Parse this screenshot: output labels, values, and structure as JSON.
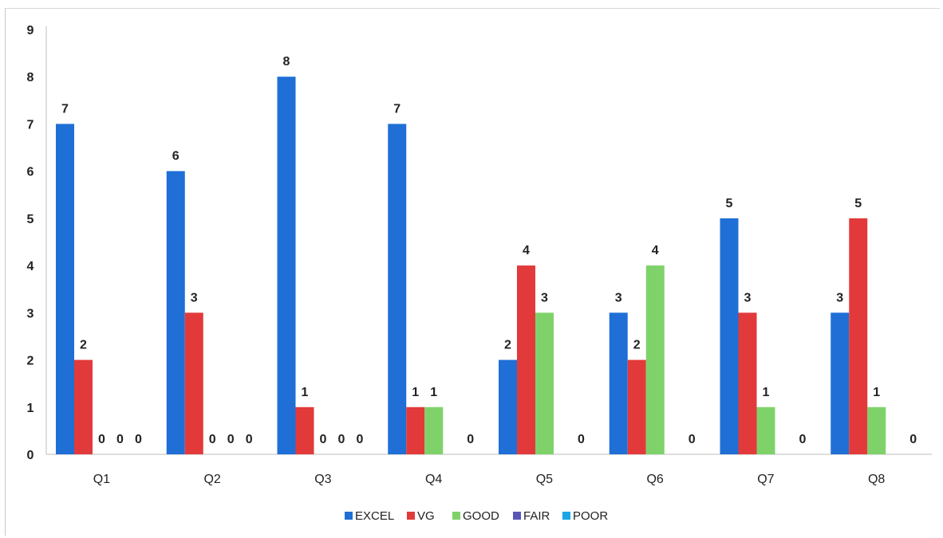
{
  "chart_data": {
    "type": "bar",
    "categories": [
      "Q1",
      "Q2",
      "Q3",
      "Q4",
      "Q5",
      "Q6",
      "Q7",
      "Q8"
    ],
    "series": [
      {
        "name": "EXCEL",
        "color": "#1f6fd6",
        "values": [
          7,
          6,
          8,
          7,
          2,
          3,
          5,
          3
        ],
        "labels": [
          "7",
          "6",
          "8",
          "7",
          "2",
          "3",
          "5",
          "3"
        ]
      },
      {
        "name": "VG",
        "color": "#e23a3a",
        "values": [
          2,
          3,
          1,
          1,
          4,
          2,
          3,
          5
        ],
        "labels": [
          "2",
          "3",
          "1",
          "1",
          "4",
          "2",
          "3",
          "5"
        ]
      },
      {
        "name": "GOOD",
        "color": "#7fd26a",
        "values": [
          0,
          0,
          0,
          1,
          3,
          4,
          1,
          1
        ],
        "labels": [
          "0",
          "0",
          "0",
          "1",
          "3",
          "4",
          "1",
          "1"
        ]
      },
      {
        "name": "FAIR",
        "color": "#5b55b8",
        "values": [
          0,
          0,
          0,
          0,
          0,
          0,
          0,
          0
        ],
        "labels": [
          "0",
          "0",
          "0",
          "",
          "",
          "",
          "",
          ""
        ]
      },
      {
        "name": "POOR",
        "color": "#1aa7e6",
        "values": [
          0,
          0,
          0,
          0,
          0,
          0,
          0,
          0
        ],
        "labels": [
          "0",
          "0",
          "0",
          "0",
          "0",
          "0",
          "0",
          "0"
        ]
      }
    ],
    "yticks": [
      "0",
      "1",
      "2",
      "3",
      "4",
      "5",
      "6",
      "7",
      "8",
      "9"
    ],
    "ylim": [
      0,
      9
    ],
    "grid": false,
    "legend_position": "bottom",
    "title": "",
    "xlabel": "",
    "ylabel": ""
  }
}
